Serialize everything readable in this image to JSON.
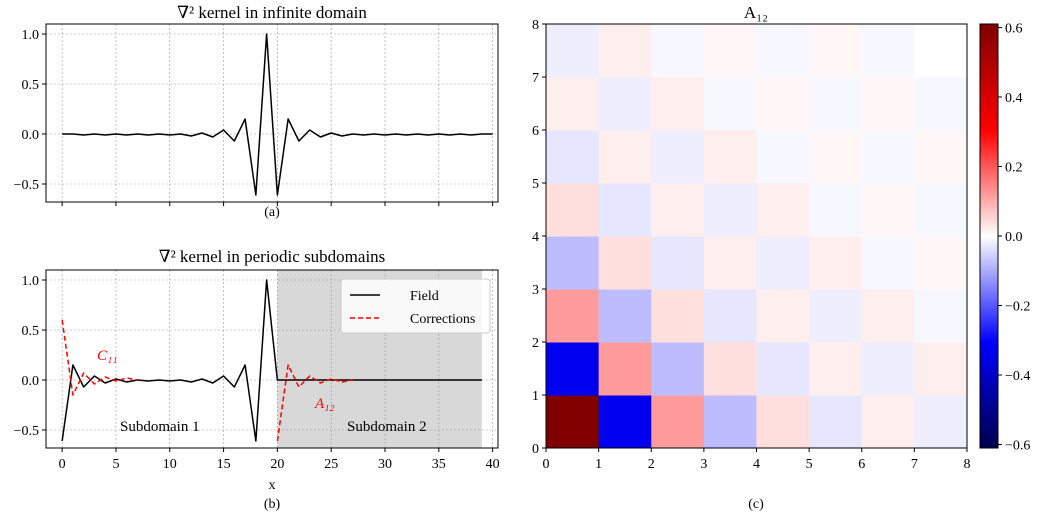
{
  "chart_data": [
    {
      "type": "line",
      "title": "∇² kernel in infinite domain",
      "caption": "(a)",
      "xlabel": "",
      "xlim": [
        -1.5,
        40.5
      ],
      "ylim": [
        -0.68,
        1.1
      ],
      "yticks": [
        1.0,
        0.5,
        0.0,
        -0.5
      ],
      "ytick_labels": [
        "1.0",
        "0.5",
        "0.0",
        "−0.5"
      ],
      "xticks": [
        0,
        5,
        10,
        15,
        20,
        25,
        30,
        35,
        40
      ],
      "grid": true,
      "series": [
        {
          "color": "#000000",
          "style": "solid",
          "x": [
            0,
            1,
            2,
            3,
            4,
            5,
            6,
            7,
            8,
            9,
            10,
            11,
            12,
            13,
            14,
            15,
            16,
            17,
            18,
            19,
            20,
            21,
            22,
            23,
            24,
            25,
            26,
            27,
            28,
            29,
            30,
            31,
            32,
            33,
            34,
            35,
            36,
            37,
            38,
            39,
            40
          ],
          "y": [
            0,
            0,
            -0.01,
            0,
            -0.01,
            0,
            -0.01,
            0,
            -0.01,
            0,
            -0.01,
            0,
            -0.02,
            0.01,
            -0.03,
            0.04,
            -0.07,
            0.15,
            -0.61,
            1.0,
            -0.61,
            0.15,
            -0.07,
            0.04,
            -0.03,
            0.01,
            -0.02,
            0,
            -0.01,
            0,
            -0.01,
            0,
            -0.01,
            0,
            -0.01,
            0,
            -0.01,
            0,
            -0.01,
            0,
            0
          ]
        }
      ]
    },
    {
      "type": "line",
      "title": "∇² kernel in periodic subdomains",
      "caption": "(b)",
      "xlabel": "x",
      "xlim": [
        -1.5,
        40.5
      ],
      "ylim": [
        -0.68,
        1.1
      ],
      "yticks": [
        1.0,
        0.5,
        0.0,
        -0.5
      ],
      "ytick_labels": [
        "1.0",
        "0.5",
        "0.0",
        "−0.5"
      ],
      "xticks": [
        0,
        5,
        10,
        15,
        20,
        25,
        30,
        35,
        40
      ],
      "xtick_labels": [
        "0",
        "5",
        "10",
        "15",
        "20",
        "25",
        "30",
        "35",
        "40"
      ],
      "grid": true,
      "shaded_region": [
        20,
        39
      ],
      "legend_position": "top-right",
      "series": [
        {
          "name": "Field",
          "color": "#000000",
          "style": "solid",
          "x": [
            0,
            1,
            2,
            3,
            4,
            5,
            6,
            7,
            8,
            9,
            10,
            11,
            12,
            13,
            14,
            15,
            16,
            17,
            18,
            19,
            20,
            21,
            22,
            23,
            24,
            25,
            26,
            27,
            28,
            29,
            30,
            31,
            32,
            33,
            34,
            35,
            36,
            37,
            38,
            39
          ],
          "y": [
            -0.61,
            0.15,
            -0.07,
            0.04,
            -0.03,
            0.01,
            -0.02,
            0,
            -0.01,
            0,
            -0.01,
            0,
            -0.02,
            0.01,
            -0.03,
            0.04,
            -0.07,
            0.15,
            -0.61,
            1.0,
            0,
            0,
            0,
            0,
            0,
            0,
            0,
            0,
            0,
            0,
            0,
            0,
            0,
            0,
            0,
            0,
            0,
            0,
            0,
            0
          ]
        },
        {
          "name": "Corrections",
          "color": "#ff0000",
          "style": "dashed",
          "x": [
            0,
            1,
            2,
            3,
            4,
            5,
            6,
            7
          ],
          "y": [
            0.6,
            -0.15,
            0.07,
            -0.04,
            0.03,
            -0.01,
            0.02,
            0
          ]
        },
        {
          "color": "#ff0000",
          "style": "dashed",
          "x": [
            20,
            21,
            22,
            23,
            24,
            25,
            26,
            27
          ],
          "y": [
            -0.61,
            0.15,
            -0.07,
            0.04,
            -0.03,
            0.01,
            -0.02,
            0
          ]
        }
      ],
      "annotations": {
        "c11": "C₁₁",
        "a12": "A₁₂",
        "subdomain1": "Subdomain 1",
        "subdomain2": "Subdomain 2"
      }
    },
    {
      "type": "heatmap",
      "title": "A₁₂",
      "caption": "(c)",
      "xlim": [
        0,
        8
      ],
      "ylim": [
        0,
        8
      ],
      "xticks": [
        0,
        1,
        2,
        3,
        4,
        5,
        6,
        7,
        8
      ],
      "yticks": [
        0,
        1,
        2,
        3,
        4,
        5,
        6,
        7,
        8
      ],
      "colormap": "seismic",
      "vmin": -0.61,
      "vmax": 0.61,
      "colorbar_ticks": [
        0.6,
        0.4,
        0.2,
        0.0,
        -0.2,
        -0.4,
        -0.6
      ],
      "colorbar_labels": [
        "0.6",
        "0.4",
        "0.2",
        "0.0",
        "−0.2",
        "−0.4",
        "−0.6"
      ],
      "rows_bottom_to_top": [
        [
          0.61,
          -0.33,
          0.12,
          -0.08,
          0.04,
          -0.03,
          0.02,
          -0.02
        ],
        [
          -0.33,
          0.12,
          -0.08,
          0.04,
          -0.03,
          0.02,
          -0.02,
          0.02
        ],
        [
          0.12,
          -0.08,
          0.04,
          -0.03,
          0.02,
          -0.02,
          0.02,
          -0.01
        ],
        [
          -0.08,
          0.04,
          -0.03,
          0.02,
          -0.02,
          0.02,
          -0.01,
          0.01
        ],
        [
          0.04,
          -0.03,
          0.02,
          -0.02,
          0.02,
          -0.01,
          0.01,
          -0.01
        ],
        [
          -0.03,
          0.02,
          -0.02,
          0.02,
          -0.01,
          0.01,
          -0.01,
          0.01
        ],
        [
          0.02,
          -0.02,
          0.02,
          -0.01,
          0.01,
          -0.01,
          0.01,
          -0.01
        ],
        [
          -0.02,
          0.02,
          -0.01,
          0.01,
          -0.01,
          0.01,
          -0.01,
          0.0
        ]
      ]
    }
  ]
}
